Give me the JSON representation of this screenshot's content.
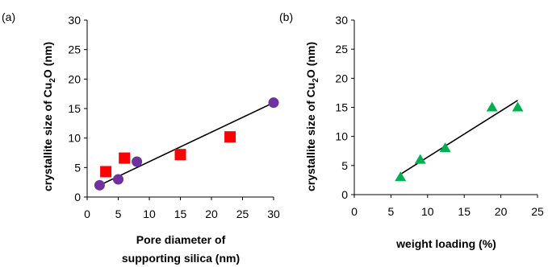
{
  "chart_data": [
    {
      "type": "scatter",
      "panel_label": "(a)",
      "title": "",
      "xlabel_lines": [
        "Pore diameter of",
        "supporting silica (nm)"
      ],
      "ylabel": "crystallite size of Cu",
      "ylabel_sub": "2",
      "ylabel_end": "O (nm)",
      "xlim": [
        0,
        30
      ],
      "ylim": [
        0,
        30
      ],
      "xticks": [
        0,
        5,
        10,
        15,
        20,
        25,
        30
      ],
      "yticks": [
        0,
        5,
        10,
        15,
        20,
        25,
        30
      ],
      "grid": false,
      "legend": "none",
      "series": [
        {
          "marker": "circle",
          "color": "#7030a0",
          "points": [
            [
              2,
              2
            ],
            [
              5,
              3
            ],
            [
              8,
              6
            ],
            [
              30,
              16
            ]
          ]
        },
        {
          "marker": "square",
          "color": "#ff0000",
          "points": [
            [
              3,
              4.3
            ],
            [
              6,
              6.6
            ],
            [
              15,
              7.2
            ],
            [
              23,
              10.2
            ]
          ]
        }
      ],
      "trendline": [
        [
          2,
          2
        ],
        [
          30,
          16
        ]
      ]
    },
    {
      "type": "scatter",
      "panel_label": "(b)",
      "title": "",
      "xlabel_lines": [
        "weight loading (%)"
      ],
      "ylabel": "crystallite size of Cu",
      "ylabel_sub": "2",
      "ylabel_end": "O (nm)",
      "xlim": [
        0,
        25
      ],
      "ylim": [
        0,
        30
      ],
      "xticks": [
        0,
        5,
        10,
        15,
        20,
        25
      ],
      "yticks": [
        0,
        5,
        10,
        15,
        20,
        25,
        30
      ],
      "grid": false,
      "legend": "none",
      "series": [
        {
          "marker": "triangle",
          "color": "#00b050",
          "points": [
            [
              6.3,
              3
            ],
            [
              9,
              6
            ],
            [
              12.4,
              8
            ],
            [
              18.8,
              15
            ],
            [
              22.3,
              15
            ]
          ]
        }
      ],
      "trendline": [
        [
          6.3,
          3.5
        ],
        [
          22.3,
          16.2
        ]
      ]
    }
  ]
}
